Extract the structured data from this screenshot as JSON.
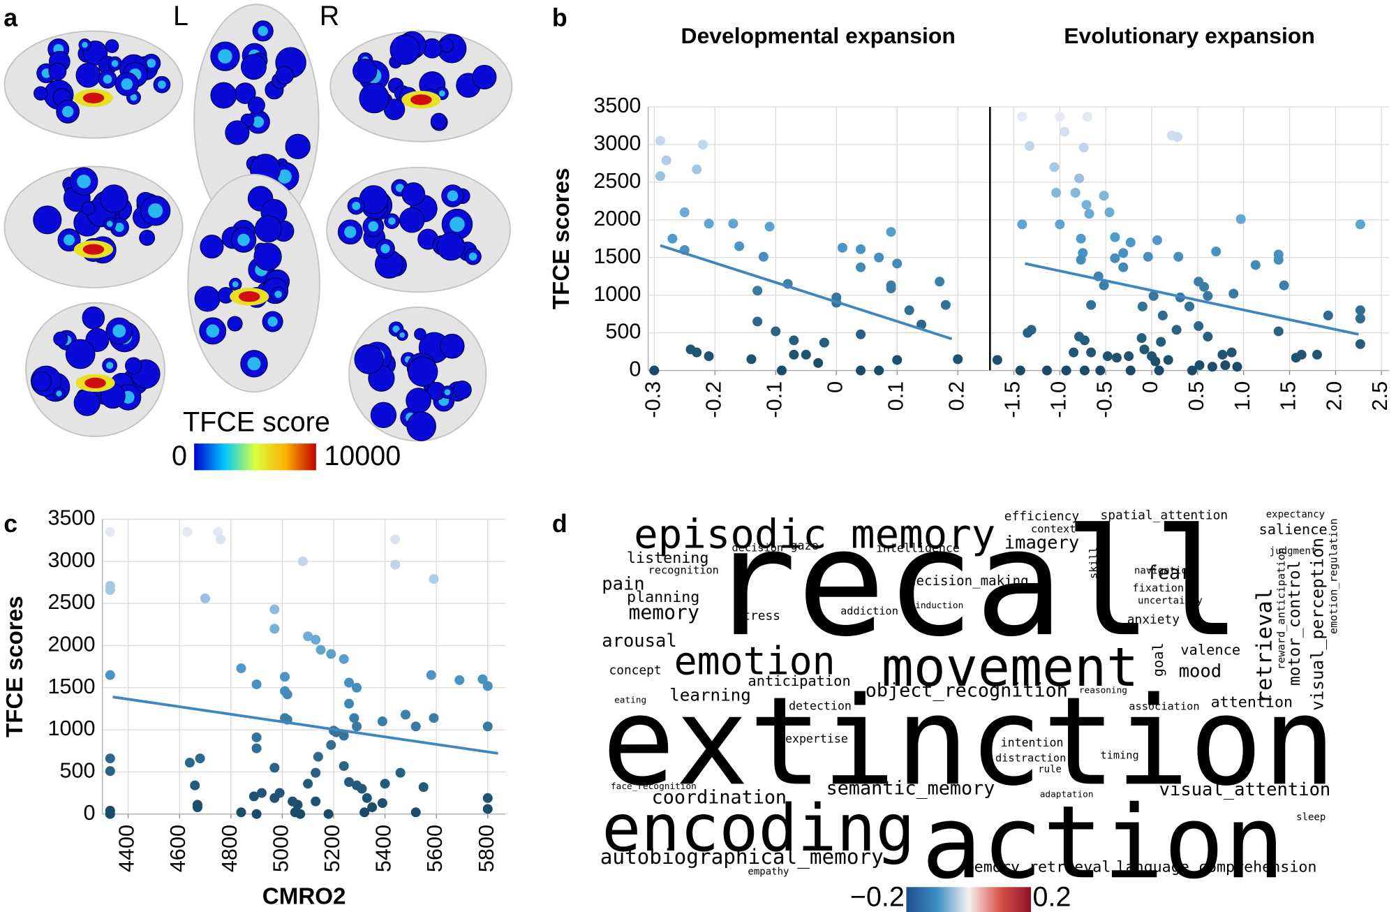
{
  "panel_labels": [
    "a",
    "b",
    "c",
    "d"
  ],
  "panel_a": {
    "left": "L",
    "right": "R",
    "colorbar": {
      "title": "TFCE score",
      "ticks": [
        0,
        10000
      ],
      "colors": [
        "#0000d0",
        "#00c8ff",
        "#d8ff40",
        "#ffb000",
        "#c00000"
      ]
    }
  },
  "chart_data": [
    {
      "type": "scatter",
      "title": "Developmental expansion",
      "ylabel": "TFCE scores",
      "xlim": [
        -0.31,
        0.25
      ],
      "ylim": [
        0,
        3500
      ],
      "xticks": [
        -0.3,
        -0.2,
        -0.1,
        0,
        0.1,
        0.2
      ],
      "yticks": [
        0,
        500,
        1000,
        1500,
        2000,
        2500,
        3000,
        3500
      ],
      "grid": true,
      "colormap": [
        "#1a4a66",
        "#4d9acb",
        "#f2eef8"
      ],
      "x": [
        -0.29,
        -0.28,
        -0.29,
        -0.23,
        -0.22,
        -0.25,
        -0.27,
        -0.25,
        -0.21,
        -0.16,
        -0.17,
        -0.11,
        -0.12,
        -0.08,
        -0.13,
        0,
        0,
        0.01,
        0.04,
        0.04,
        0.07,
        0.09,
        0.09,
        0.09,
        0.1,
        0.12,
        0.17,
        0.18,
        0.14,
        -0.13,
        -0.1,
        -0.07,
        -0.02,
        0.04,
        -0.24,
        -0.23,
        -0.21,
        -0.3,
        -0.14,
        -0.09,
        -0.07,
        -0.05,
        -0.03,
        0.04,
        0.07,
        0.1,
        0.2
      ],
      "y": [
        3050,
        2790,
        2580,
        2670,
        3000,
        2100,
        1750,
        1600,
        1950,
        1650,
        1950,
        1910,
        1510,
        1150,
        1060,
        970,
        900,
        1630,
        1610,
        1370,
        1500,
        1090,
        1130,
        1840,
        1420,
        800,
        1180,
        870,
        610,
        650,
        520,
        400,
        370,
        480,
        280,
        240,
        190,
        0,
        150,
        0,
        210,
        210,
        100,
        0,
        0,
        140,
        150
      ],
      "trend": {
        "color": "#3f86c0",
        "x": [
          -0.29,
          0.19
        ],
        "y": [
          1660,
          420
        ]
      }
    },
    {
      "type": "scatter",
      "title": "Evolutionary expansion",
      "sharey": true,
      "xlim": [
        -1.76,
        2.58
      ],
      "ylim": [
        0,
        3500
      ],
      "xticks": [
        -1.5,
        {
          "value": -1,
          "label": "-1.0"
        },
        -0.5,
        0,
        0.5,
        {
          "value": 1,
          "label": "1.0"
        },
        1.5,
        {
          "value": 2,
          "label": "2.0"
        },
        2.5
      ],
      "grid": true,
      "colormap": [
        "#1a4a66",
        "#4d9acb",
        "#f2eef8"
      ],
      "x": [
        -1.41,
        -1.33,
        -1,
        -0.95,
        -0.7,
        -0.74,
        -1.06,
        -0.79,
        -1.04,
        -0.83,
        -0.71,
        -0.52,
        -0.46,
        -0.68,
        0.22,
        0.28,
        -1.41,
        -1,
        -0.77,
        -0.4,
        -0.31,
        -0.23,
        -0.75,
        -0.77,
        -0.58,
        -0.66,
        -0.52,
        -0.31,
        -0.4,
        -0.04,
        0.06,
        0.29,
        0.7,
        0.97,
        1.13,
        1.38,
        1.38,
        1.44,
        2.27,
        2.27,
        2.27,
        2.27,
        1.92,
        1.38,
        0.02,
        0.12,
        0.31,
        0.41,
        0.51,
        0.57,
        0.61,
        0.89,
        0.51,
        0.61,
        -0.1,
        -0.11,
        -0.08,
        0.1,
        0.27,
        -1.31,
        -1.35,
        -0.79,
        -0.73,
        -0.85,
        -0.66,
        -0.48,
        -0.38,
        -0.25,
        0,
        0.04,
        0.18,
        0.66,
        0.8,
        0.87,
        0.93,
        0.77,
        1.57,
        1.63,
        1.8,
        -1.68,
        -1.43,
        -1.14,
        -0.93,
        -0.73,
        -0.56,
        -0.23,
        0.08,
        0.44,
        0.52
      ],
      "y": [
        3370,
        2980,
        3370,
        3170,
        3370,
        2960,
        2700,
        2550,
        2360,
        2360,
        2200,
        2320,
        2100,
        2080,
        3120,
        3100,
        1940,
        1940,
        1750,
        1770,
        1560,
        1700,
        1560,
        1470,
        1250,
        870,
        1130,
        1370,
        1490,
        1510,
        1730,
        1510,
        1580,
        2010,
        1400,
        1540,
        1470,
        1130,
        1940,
        800,
        690,
        350,
        730,
        520,
        990,
        730,
        970,
        850,
        1180,
        1110,
        990,
        1020,
        590,
        450,
        850,
        430,
        280,
        380,
        540,
        540,
        500,
        450,
        400,
        240,
        240,
        190,
        170,
        190,
        190,
        120,
        140,
        50,
        70,
        240,
        50,
        210,
        170,
        210,
        210,
        140,
        0,
        0,
        0,
        0,
        0,
        0,
        0,
        0,
        70
      ],
      "trend": {
        "color": "#3f86c0",
        "x": [
          -1.38,
          2.25
        ],
        "y": [
          1420,
          480
        ]
      }
    },
    {
      "type": "scatter",
      "xlabel": "CMRO2",
      "ylabel": "TFCE scores",
      "xlim": [
        4300,
        5870
      ],
      "ylim": [
        0,
        3500
      ],
      "xticks": [
        4400,
        4600,
        4800,
        5000,
        5200,
        5400,
        5600,
        5800
      ],
      "yticks": [
        0,
        500,
        1000,
        1500,
        2000,
        2500,
        3000,
        3500
      ],
      "grid": true,
      "colormap": [
        "#1a4a66",
        "#4d9acb",
        "#f2eef8"
      ],
      "x": [
        4330,
        4330,
        4330,
        4330,
        4330,
        4330,
        4330,
        4330,
        4630,
        4750,
        4760,
        4700,
        4840,
        4900,
        4900,
        4900,
        4970,
        4970,
        5010,
        5010,
        5020,
        5010,
        5020,
        5080,
        5100,
        5130,
        5150,
        5190,
        5240,
        5260,
        5290,
        5260,
        5280,
        5290,
        5200,
        5210,
        5240,
        5190,
        5140,
        5130,
        5100,
        5240,
        5260,
        5290,
        5310,
        5330,
        5350,
        5400,
        5390,
        5460,
        5550,
        5520,
        5440,
        5440,
        5590,
        5580,
        5590,
        5520,
        5480,
        5390,
        5690,
        5780,
        5800,
        5800,
        5800,
        5800,
        4640,
        4680,
        4660,
        4670,
        4670,
        4840,
        4900,
        4890,
        4920,
        4970,
        4970,
        4990,
        5040,
        5050,
        5070,
        5060,
        5180,
        5320,
        5130
      ],
      "y": [
        3350,
        2710,
        2660,
        1650,
        660,
        510,
        40,
        0,
        3350,
        3350,
        3260,
        2560,
        1730,
        1540,
        910,
        780,
        2430,
        2200,
        1630,
        1460,
        1420,
        1140,
        1120,
        3000,
        2110,
        2070,
        1950,
        1900,
        1840,
        1560,
        1500,
        1310,
        1140,
        1040,
        990,
        970,
        930,
        820,
        680,
        490,
        360,
        570,
        380,
        340,
        300,
        190,
        80,
        360,
        130,
        490,
        320,
        20,
        3260,
        2960,
        2790,
        1650,
        1140,
        1040,
        1180,
        1100,
        1590,
        1600,
        1520,
        1040,
        190,
        60,
        610,
        660,
        340,
        110,
        80,
        20,
        0,
        210,
        250,
        550,
        190,
        250,
        150,
        20,
        0,
        110,
        0,
        20,
        150
      ],
      "trend": {
        "color": "#3f86c0",
        "x": [
          4340,
          5840
        ],
        "y": [
          1390,
          720
        ]
      }
    },
    {
      "type": "wordcloud",
      "words": [
        "recall",
        "extinction",
        "action",
        "encoding",
        "episodic_memory",
        "movement",
        "emotion",
        "imagery",
        "fear",
        "pain",
        "listening",
        "planning",
        "memory",
        "arousal",
        "anticipation",
        "learning",
        "object_recognition",
        "detection",
        "expertise",
        "intention",
        "timing",
        "rule",
        "semantic_memory",
        "coordination",
        "visual_attention",
        "autobiographical_memory",
        "memory_retrieval",
        "language_comprehension",
        "efficiency",
        "spatial_attention",
        "expectancy",
        "salience",
        "context",
        "intelligence",
        "decision",
        "gaze",
        "recognition",
        "decision_making",
        "stress",
        "addiction",
        "judgment",
        "fixation",
        "navigation",
        "uncertainty",
        "induction",
        "anxiety",
        "valence",
        "mood",
        "concept",
        "eating",
        "attention",
        "association",
        "reasoning",
        "distraction",
        "face_recognition",
        "empathy",
        "sleep",
        "adaptation",
        "retrieval",
        "visual_perception",
        "motor_control",
        "goal",
        "reward_anticipation",
        "emotion_regulation",
        "skill"
      ],
      "values": [
        0.19,
        0.18,
        -0.17,
        0.15,
        0.12,
        -0.13,
        0.12,
        -0.08,
        0.1,
        0.09,
        0.08,
        -0.06,
        0.1,
        0.1,
        0.07,
        0.1,
        -0.08,
        -0.06,
        -0.06,
        -0.06,
        -0.05,
        -0.04,
        0.1,
        -0.08,
        -0.08,
        0.1,
        0.09,
        0.08,
        -0.06,
        -0.06,
        0.05,
        0.07,
        -0.05,
        -0.05,
        -0.05,
        -0.05,
        0.04,
        -0.05,
        0.05,
        0.05,
        -0.04,
        -0.04,
        -0.03,
        -0.03,
        0.03,
        0.06,
        0.07,
        0.1,
        -0.05,
        0.03,
        -0.07,
        0.05,
        -0.03,
        0.05,
        -0.03,
        0.04,
        0.04,
        -0.03,
        0.12,
        -0.09,
        -0.08,
        -0.06,
        0.05,
        0.05,
        -0.04
      ],
      "weights": [
        166,
        137,
        113,
        73,
        45,
        60,
        43,
        20,
        21,
        20,
        17,
        17,
        22,
        20,
        16,
        19,
        21,
        13,
        13,
        13,
        12,
        11,
        21,
        21,
        20,
        23,
        17,
        17,
        14,
        14,
        11,
        16,
        12,
        13,
        12,
        13,
        12,
        15,
        14,
        12,
        11,
        12,
        11,
        11,
        10,
        14,
        16,
        20,
        14,
        10,
        17,
        12,
        10,
        12,
        10,
        11,
        11,
        10,
        24,
        19,
        18,
        16,
        12,
        12,
        12
      ],
      "colorbar": {
        "ticks": [
          {
            "value": -0.2,
            "label": "−0.2"
          },
          0.2
        ],
        "colors": [
          "#1f4e8c",
          "#3d8ec4",
          "#f7f2f0",
          "#d9534a",
          "#8e1027"
        ]
      }
    }
  ]
}
